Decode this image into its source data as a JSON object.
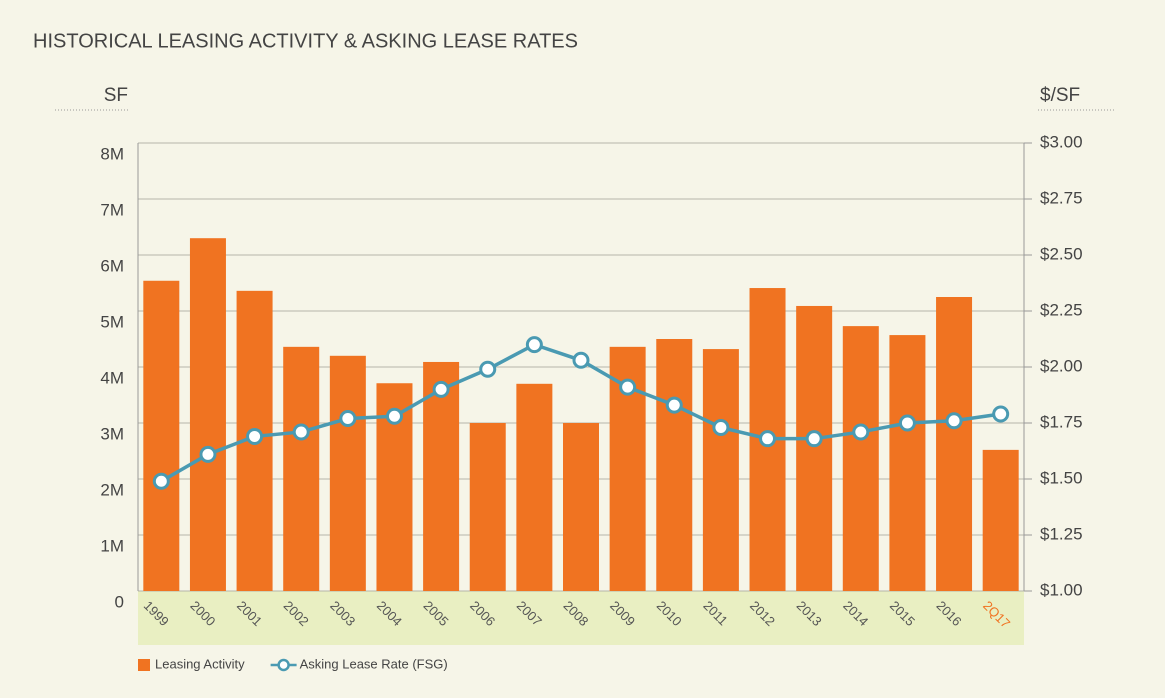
{
  "chart_data": {
    "type": "bar_line",
    "title": "HISTORICAL LEASING ACTIVITY & ASKING LEASE RATES",
    "y_axis_label": "SF",
    "y2_axis_label": "$/SF",
    "categories": [
      "1999",
      "2000",
      "2001",
      "2002",
      "2003",
      "2004",
      "2005",
      "2006",
      "2007",
      "2008",
      "2009",
      "2010",
      "2011",
      "2012",
      "2013",
      "2014",
      "2015",
      "2016",
      "2Q17"
    ],
    "category_label_colors": [
      "#555555",
      "#555555",
      "#555555",
      "#555555",
      "#555555",
      "#555555",
      "#555555",
      "#555555",
      "#555555",
      "#555555",
      "#555555",
      "#555555",
      "#555555",
      "#555555",
      "#555555",
      "#555555",
      "#555555",
      "#555555",
      "#f07321"
    ],
    "series": [
      {
        "name": "Leasing Activity",
        "type": "bar",
        "color": "#f07321",
        "values": [
          5540000,
          6300000,
          5360000,
          4360000,
          4200000,
          3710000,
          4090000,
          3000000,
          3700000,
          3000000,
          4360000,
          4500000,
          4320000,
          5410000,
          5090000,
          4730000,
          4570000,
          5250000,
          2520000
        ]
      },
      {
        "name": "Asking Lease Rate (FSG)",
        "type": "line",
        "axis": "y2",
        "color": "#4a9ab2",
        "values": [
          1.49,
          1.61,
          1.69,
          1.71,
          1.77,
          1.78,
          1.9,
          1.99,
          2.1,
          2.03,
          1.91,
          1.83,
          1.73,
          1.68,
          1.68,
          1.71,
          1.75,
          1.76,
          1.79
        ]
      }
    ],
    "ylim": [
      0,
      8000000
    ],
    "yticks": [
      0,
      {
        "value": 1000000,
        "label": "1M"
      },
      {
        "value": 2000000,
        "label": "2M"
      },
      {
        "value": 3000000,
        "label": "3M"
      },
      {
        "value": 4000000,
        "label": "4M"
      },
      {
        "value": 5000000,
        "label": "5M"
      },
      {
        "value": 6000000,
        "label": "6M"
      },
      {
        "value": 7000000,
        "label": "7M"
      },
      {
        "value": 8000000,
        "label": "8M"
      }
    ],
    "y2lim": [
      1,
      3
    ],
    "y2ticks": [
      {
        "value": 1,
        "label": "$1.00"
      },
      {
        "value": 1.25,
        "label": "$1.25"
      },
      {
        "value": 1.5,
        "label": "$1.50"
      },
      {
        "value": 1.75,
        "label": "$1.75"
      },
      {
        "value": 2,
        "label": "$2.00"
      },
      {
        "value": 2.25,
        "label": "$2.25"
      },
      {
        "value": 2.5,
        "label": "$2.50"
      },
      {
        "value": 2.75,
        "label": "$2.75"
      },
      {
        "value": 3,
        "label": "$3.00"
      }
    ],
    "grid": true,
    "legend": "bottom-left"
  }
}
